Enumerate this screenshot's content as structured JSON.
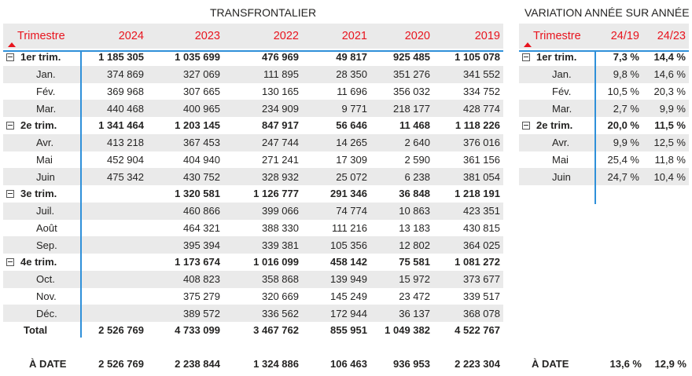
{
  "main": {
    "title": "TRANSFRONTALIER",
    "headers": [
      "Trimestre",
      "2024",
      "2023",
      "2022",
      "2021",
      "2020",
      "2019"
    ],
    "rows": [
      {
        "type": "q",
        "label": "1er trim.",
        "vals": [
          "1 185 305",
          "1 035 699",
          "476 969",
          "49 817",
          "925 485",
          "1 105 078"
        ]
      },
      {
        "type": "m",
        "label": "Jan.",
        "vals": [
          "374 869",
          "327 069",
          "111 895",
          "28 350",
          "351 276",
          "341 552"
        ]
      },
      {
        "type": "m",
        "label": "Fév.",
        "vals": [
          "369 968",
          "307 665",
          "130 165",
          "11 696",
          "356 032",
          "334 752"
        ]
      },
      {
        "type": "m",
        "label": "Mar.",
        "vals": [
          "440 468",
          "400 965",
          "234 909",
          "9 771",
          "218 177",
          "428 774"
        ]
      },
      {
        "type": "q",
        "label": "2e trim.",
        "vals": [
          "1 341 464",
          "1 203 145",
          "847 917",
          "56 646",
          "11 468",
          "1 118 226"
        ]
      },
      {
        "type": "m",
        "label": "Avr.",
        "vals": [
          "413 218",
          "367 453",
          "247 744",
          "14 265",
          "2 640",
          "376 016"
        ]
      },
      {
        "type": "m",
        "label": "Mai",
        "vals": [
          "452 904",
          "404 940",
          "271 241",
          "17 309",
          "2 590",
          "361 156"
        ]
      },
      {
        "type": "m",
        "label": "Juin",
        "vals": [
          "475 342",
          "430 752",
          "328 932",
          "25 072",
          "6 238",
          "381 054"
        ]
      },
      {
        "type": "q",
        "label": "3e trim.",
        "vals": [
          "",
          "1 320 581",
          "1 126 777",
          "291 346",
          "36 848",
          "1 218 191"
        ]
      },
      {
        "type": "m",
        "label": "Juil.",
        "vals": [
          "",
          "460 866",
          "399 066",
          "74 774",
          "10 863",
          "423 351"
        ]
      },
      {
        "type": "m",
        "label": "Août",
        "vals": [
          "",
          "464 321",
          "388 330",
          "111 216",
          "13 183",
          "430 815"
        ]
      },
      {
        "type": "m",
        "label": "Sep.",
        "vals": [
          "",
          "395 394",
          "339 381",
          "105 356",
          "12 802",
          "364 025"
        ]
      },
      {
        "type": "q",
        "label": "4e trim.",
        "vals": [
          "",
          "1 173 674",
          "1 016 099",
          "458 142",
          "75 581",
          "1 081 272"
        ]
      },
      {
        "type": "m",
        "label": "Oct.",
        "vals": [
          "",
          "408 823",
          "358 868",
          "139 949",
          "15 972",
          "373 677"
        ]
      },
      {
        "type": "m",
        "label": "Nov.",
        "vals": [
          "",
          "375 279",
          "320 669",
          "145 249",
          "23 472",
          "339 517"
        ]
      },
      {
        "type": "m",
        "label": "Déc.",
        "vals": [
          "",
          "389 572",
          "336 562",
          "172 944",
          "36 137",
          "368 078"
        ]
      }
    ],
    "total": {
      "label": "Total",
      "vals": [
        "2 526 769",
        "4 733 099",
        "3 467 762",
        "855 951",
        "1 049 382",
        "4 522 767"
      ]
    },
    "adate": {
      "label": "À DATE",
      "vals": [
        "2 526 769",
        "2 238 844",
        "1 324 886",
        "106 463",
        "936 953",
        "2 223 304"
      ]
    }
  },
  "variation": {
    "title": "VARIATION ANNÉE SUR ANNÉE",
    "headers": [
      "Trimestre",
      "24/19",
      "24/23"
    ],
    "rows": [
      {
        "type": "q",
        "label": "1er trim.",
        "vals": [
          "7,3 %",
          "14,4 %"
        ]
      },
      {
        "type": "m",
        "label": "Jan.",
        "vals": [
          "9,8 %",
          "14,6 %"
        ]
      },
      {
        "type": "m",
        "label": "Fév.",
        "vals": [
          "10,5 %",
          "20,3 %"
        ]
      },
      {
        "type": "m",
        "label": "Mar.",
        "vals": [
          "2,7 %",
          "9,9 %"
        ]
      },
      {
        "type": "q",
        "label": "2e trim.",
        "vals": [
          "20,0 %",
          "11,5 %"
        ]
      },
      {
        "type": "m",
        "label": "Avr.",
        "vals": [
          "9,9 %",
          "12,5 %"
        ]
      },
      {
        "type": "m",
        "label": "Mai",
        "vals": [
          "25,4 %",
          "11,8 %"
        ]
      },
      {
        "type": "m",
        "label": "Juin",
        "vals": [
          "24,7 %",
          "10,4 %"
        ]
      }
    ],
    "adate": {
      "label": "À DATE",
      "vals": [
        "13,6 %",
        "12,9 %"
      ]
    }
  },
  "colors": {
    "header_text": "#e8141e",
    "accent_line": "#2f90d9",
    "band": "#eaeaea"
  }
}
